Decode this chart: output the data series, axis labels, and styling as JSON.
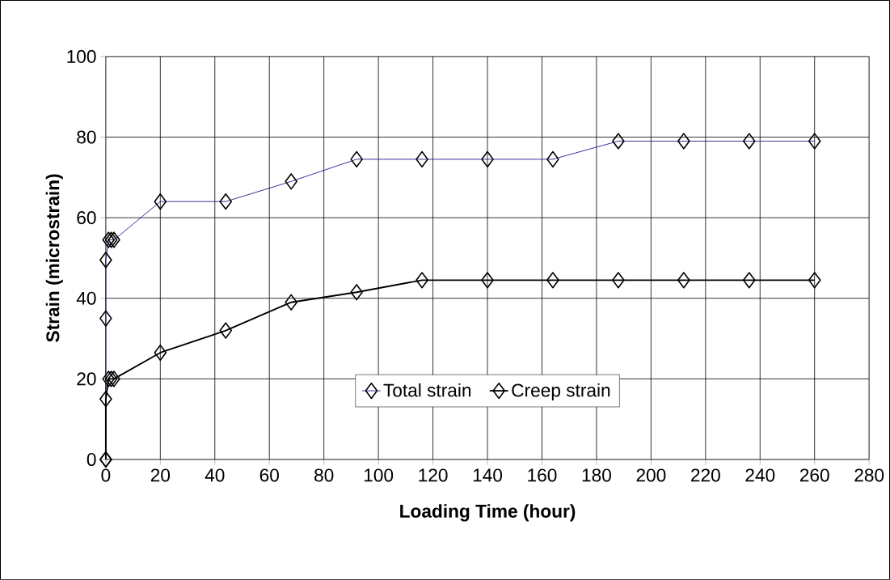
{
  "chart_data": {
    "type": "line",
    "xlabel": "Loading Time (hour)",
    "ylabel": "Strain (microstrain)",
    "xlim": [
      0,
      280
    ],
    "xticks": [
      0,
      20,
      40,
      60,
      80,
      100,
      120,
      140,
      160,
      180,
      200,
      220,
      240,
      260,
      280
    ],
    "ylim": [
      0,
      100
    ],
    "yticks": [
      0,
      20,
      40,
      60,
      80,
      100
    ],
    "grid": true,
    "legend": "bottom",
    "marker": "diamond",
    "series": [
      {
        "name": "Total strain",
        "color": "#000080",
        "x": [
          0,
          0,
          0,
          1,
          2,
          3,
          20,
          44,
          68,
          92,
          116,
          140,
          164,
          188,
          212,
          236,
          260
        ],
        "values": [
          0,
          35,
          49.5,
          54.5,
          54.5,
          54.5,
          64,
          64,
          69,
          74.5,
          74.5,
          74.5,
          74.5,
          79,
          79,
          79,
          79
        ]
      },
      {
        "name": "Creep strain",
        "color": "#000000",
        "x": [
          0,
          0,
          1,
          2,
          3,
          20,
          44,
          68,
          92,
          116,
          140,
          164,
          188,
          212,
          236,
          260
        ],
        "values": [
          0,
          15,
          20,
          20,
          20,
          26.5,
          32,
          39,
          41.5,
          44.5,
          44.5,
          44.5,
          44.5,
          44.5,
          44.5,
          44.5
        ]
      }
    ]
  }
}
